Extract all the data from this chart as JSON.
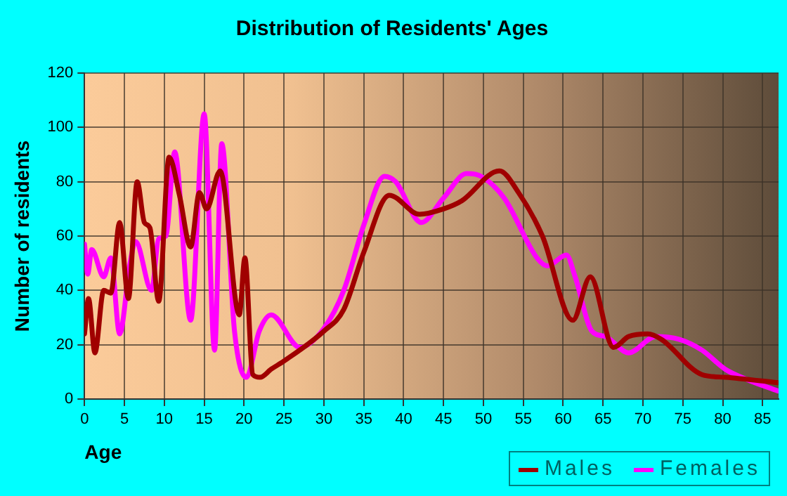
{
  "chart_data": {
    "type": "line",
    "title": "Distribution of Residents' Ages",
    "xlabel": "Age",
    "ylabel": "Number of residents",
    "xlim": [
      0,
      87
    ],
    "xticks": [
      0,
      5,
      10,
      15,
      20,
      25,
      30,
      35,
      40,
      45,
      50,
      55,
      60,
      65,
      70,
      75,
      80,
      85
    ],
    "ylim": [
      0,
      120
    ],
    "yticks": [
      0,
      20,
      40,
      60,
      80,
      100,
      120
    ],
    "grid": true,
    "legend": "bottom right",
    "marker": "none",
    "line_style": "solid",
    "series": [
      {
        "name": "Males",
        "color": "#a00000",
        "x": [
          0,
          0.5,
          1.3,
          2.4,
          3.3,
          4.4,
          5.5,
          6.6,
          7.5,
          8.2,
          9.3,
          10.6,
          11.9,
          13.3,
          14.4,
          15.3,
          17,
          19.4,
          20.1,
          21.1,
          22,
          23.4,
          25,
          30,
          32.5,
          35,
          38.2,
          42,
          45,
          47.3,
          52,
          54.4,
          57.4,
          61.2,
          63.4,
          66.3,
          68.2,
          70.6,
          72.3,
          77.4,
          80.3,
          86.9
        ],
        "values": [
          24,
          37,
          17,
          40,
          39,
          65,
          37,
          80,
          65,
          63,
          36,
          89,
          75,
          56,
          76,
          70,
          84,
          31,
          52,
          9,
          8,
          11,
          14,
          25,
          33,
          54,
          75,
          68,
          70,
          73,
          84,
          76,
          60,
          29,
          45,
          19,
          23,
          24,
          22,
          9,
          8,
          6
        ]
      },
      {
        "name": "Females",
        "color": "#ff00ff",
        "x": [
          0,
          0.4,
          0.9,
          2.4,
          3.3,
          4.4,
          5.7,
          6.4,
          8.4,
          9.3,
          10.2,
          11.3,
          13.3,
          15,
          16.3,
          17.2,
          18.8,
          20.3,
          21.9,
          23.4,
          27,
          30,
          32.5,
          35,
          37.6,
          39,
          42.2,
          45,
          47.9,
          49.7,
          52.6,
          56.7,
          58,
          60.4,
          61.5,
          63.6,
          65.3,
          68.2,
          71.6,
          74.5,
          77.4,
          80.3,
          83.2,
          86.9
        ],
        "values": [
          57,
          46,
          55,
          45,
          52,
          24,
          50,
          58,
          40,
          59,
          60,
          91,
          29,
          105,
          18,
          94,
          25,
          8,
          25,
          31,
          19,
          26,
          40,
          64,
          82,
          80,
          65,
          74,
          83,
          82,
          74,
          52,
          49,
          53,
          45,
          25,
          23,
          17,
          23,
          22,
          18,
          11,
          7,
          3
        ]
      }
    ]
  }
}
